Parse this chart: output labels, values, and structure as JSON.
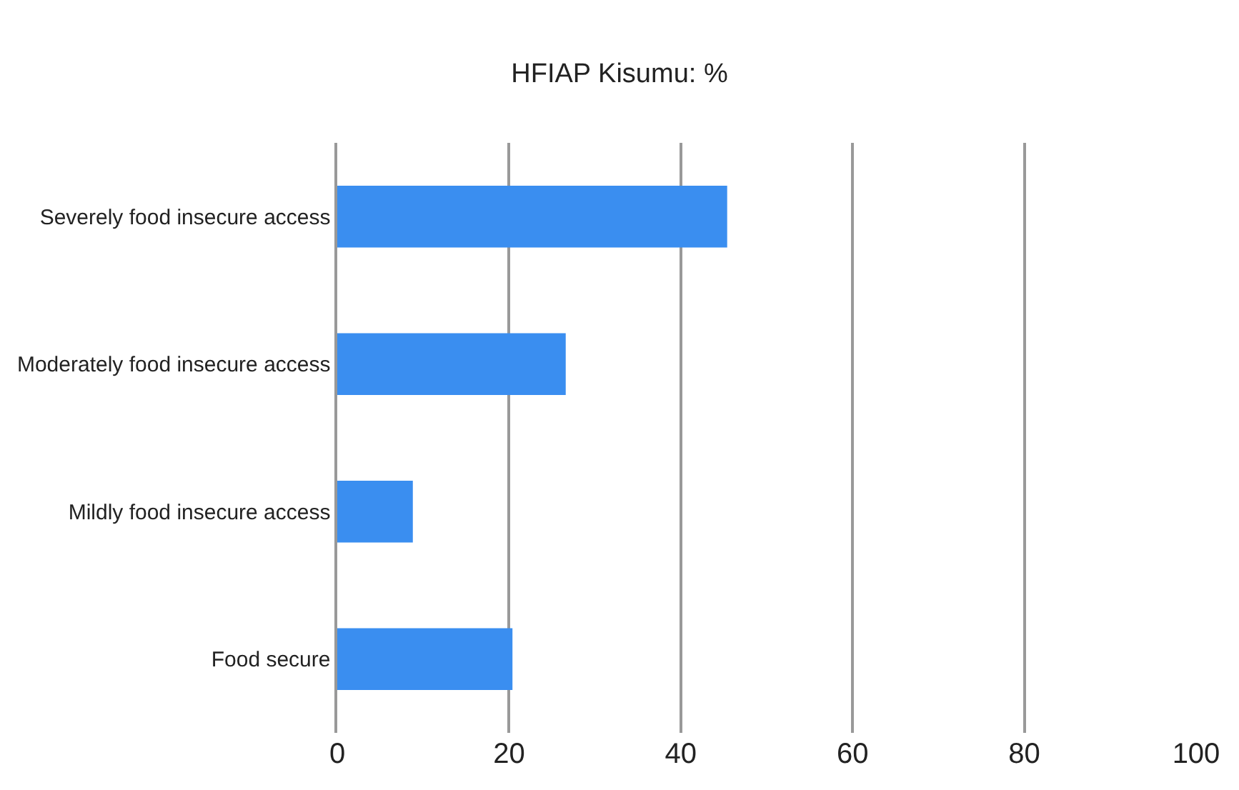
{
  "chart_data": {
    "type": "bar",
    "orientation": "horizontal",
    "title": "HFIAP Kisumu: %",
    "categories": [
      "Severely food insecure access",
      "Moderately food insecure access",
      "Mildly food insecure access",
      "Food secure"
    ],
    "values": [
      45.4,
      26.6,
      8.8,
      20.4
    ],
    "color": "#3a8ef0",
    "xlim": [
      0,
      100
    ],
    "xticks": [
      0,
      20,
      40,
      60,
      80,
      100
    ],
    "grid": "x"
  }
}
